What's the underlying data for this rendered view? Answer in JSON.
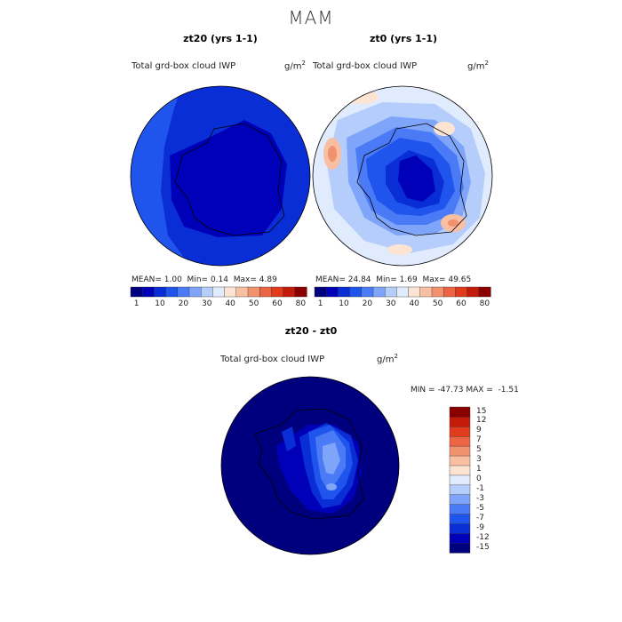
{
  "page": {
    "season": "MAM"
  },
  "panels": [
    {
      "title": "zt20 (yrs 1-1)",
      "variable": "Total grd-box cloud IWP",
      "units": "g/m",
      "units_sup": "2",
      "mean_label": "MEAN=",
      "mean": "1.00",
      "min_label": "Min=",
      "min": "0.14",
      "max_label": "Max=",
      "max": "4.89"
    },
    {
      "title": "zt0 (yrs 1-1)",
      "variable": "Total grd-box cloud IWP",
      "units": "g/m",
      "units_sup": "2",
      "mean_label": "MEAN=",
      "mean": "24.84",
      "min_label": "Min=",
      "min": "1.69",
      "max_label": "Max=",
      "max": "49.65"
    }
  ],
  "diff_panel": {
    "title": "zt20 - zt0",
    "variable": "Total grd-box cloud IWP",
    "units": "g/m",
    "units_sup": "2",
    "min_label": "MIN =",
    "min": "-47.73",
    "max_label": "MAX =",
    "max": "-1.51"
  },
  "colorbar_abs": {
    "colors": [
      "#00007f",
      "#0000b8",
      "#0a2ed6",
      "#1f55ec",
      "#4a7af5",
      "#7fa5fa",
      "#b4cdfb",
      "#e0ecfd",
      "#fde4d2",
      "#f8bfa3",
      "#f2916e",
      "#eb6443",
      "#e13a1d",
      "#c31a0a",
      "#8a0000"
    ],
    "labels": [
      "1",
      "10",
      "20",
      "30",
      "40",
      "50",
      "60",
      "80"
    ]
  },
  "colorbar_diff": {
    "colors": [
      "#00007f",
      "#0000b8",
      "#0a2ed6",
      "#1f55ec",
      "#4a7af5",
      "#7fa5fa",
      "#b4cdfb",
      "#e0ecfd",
      "#fde4d2",
      "#f8bfa3",
      "#f2916e",
      "#eb6443",
      "#e13a1d",
      "#c31a0a",
      "#8a0000"
    ],
    "labels": [
      "15",
      "12",
      "9",
      "7",
      "5",
      "3",
      "1",
      "0",
      "-1",
      "-3",
      "-5",
      "-7",
      "-9",
      "-12",
      "-15"
    ]
  }
}
